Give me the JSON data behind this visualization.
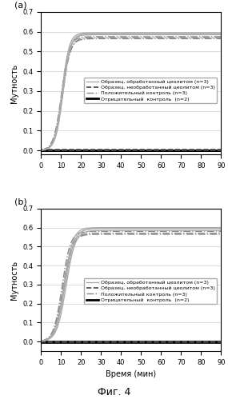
{
  "title_a": "(a)",
  "title_b": "(b)",
  "fig_label": "Фиг. 4",
  "ylabel": "Мутность",
  "xlabel": "Время (мин)",
  "xlim": [
    0,
    90
  ],
  "ylim_a": [
    -0.02,
    0.7
  ],
  "ylim_b": [
    -0.05,
    0.7
  ],
  "yticks": [
    0.0,
    0.1,
    0.2,
    0.3,
    0.4,
    0.5,
    0.6,
    0.7
  ],
  "xticks": [
    0,
    10,
    20,
    30,
    40,
    50,
    60,
    70,
    80,
    90
  ],
  "legend_entries": [
    "Образец, обработанный цеолитом (n=3)",
    "Образец, необработанный цеолитом (n=3)",
    "Положительный контроль (n=3)",
    "Отрицательный  контроль  (n=2)"
  ],
  "bg_color": "#ffffff",
  "grid_color": "#cccccc",
  "font_size_label": 7,
  "font_size_tick": 6,
  "font_size_legend": 4.5,
  "font_size_fig_label": 9
}
